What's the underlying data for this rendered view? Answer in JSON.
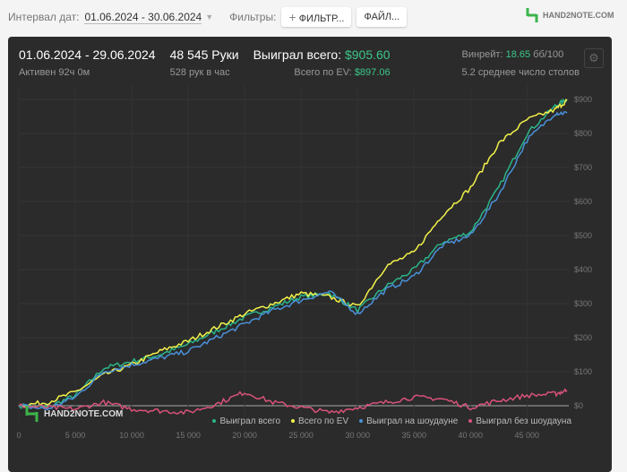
{
  "toolbar": {
    "date_label": "Интервал дат:",
    "date_range": "01.06.2024 - 30.06.2024",
    "filters_label": "Фильтры:",
    "filter_button": "ФИЛЬТР...",
    "file_button": "ФАЙЛ...",
    "logo": "HAND2NOTE.COM"
  },
  "summary": {
    "period": "01.06.2024 - 29.06.2024",
    "active": "Активен 92ч 0м",
    "hands": "48 545 Руки",
    "hands_per_hour": "528 рук в час",
    "won_label": "Выиграл всего:",
    "won_value": "$905.60",
    "ev_label": "Всего по EV:",
    "ev_value": "$897.06",
    "winrate_label": "Винрейт:",
    "winrate_value": "18.65",
    "winrate_unit": "бб/100",
    "tables": "5.2 среднее число столов"
  },
  "watermark": "HAND2NOTE.COM",
  "colors": {
    "green": "#2bb58a",
    "yellow": "#f2f24a",
    "blue": "#4a90d9",
    "pink": "#d9527a",
    "accent": "#3cc68a"
  },
  "chart_data": {
    "type": "line",
    "xlim": [
      0,
      48545
    ],
    "ylim": [
      -50,
      920
    ],
    "x_ticks": [
      0,
      5000,
      10000,
      15000,
      20000,
      25000,
      30000,
      35000,
      40000,
      45000
    ],
    "x_tick_labels": [
      "0",
      "5 000",
      "10 000",
      "15 000",
      "20 000",
      "25 000",
      "30 000",
      "35 000",
      "40 000",
      "45 000"
    ],
    "y_ticks": [
      0,
      100,
      200,
      300,
      400,
      500,
      600,
      700,
      800,
      900
    ],
    "y_tick_labels": [
      "$0",
      "$100",
      "$200",
      "$300",
      "$400",
      "$500",
      "$600",
      "$700",
      "$800",
      "$900"
    ],
    "legend": "bottom-right",
    "x": [
      0,
      2500,
      5000,
      7500,
      10000,
      12500,
      15000,
      17500,
      20000,
      22500,
      25000,
      27500,
      30000,
      32500,
      35000,
      37500,
      40000,
      42500,
      45000,
      47500,
      48545
    ],
    "series": [
      {
        "name": "Выиграл всего",
        "color": "#2bb58a",
        "values": [
          0,
          -5,
          30,
          110,
          130,
          150,
          180,
          220,
          260,
          290,
          320,
          330,
          280,
          350,
          400,
          480,
          510,
          640,
          800,
          880,
          900
        ]
      },
      {
        "name": "Всего по EV",
        "color": "#f2f24a",
        "values": [
          0,
          10,
          40,
          90,
          120,
          160,
          190,
          230,
          270,
          300,
          330,
          320,
          290,
          410,
          450,
          560,
          640,
          770,
          840,
          870,
          897
        ]
      },
      {
        "name": "Выиграл на шоудауне",
        "color": "#4a90d9",
        "values": [
          0,
          -10,
          25,
          100,
          120,
          140,
          160,
          200,
          240,
          280,
          310,
          335,
          270,
          340,
          380,
          470,
          500,
          620,
          780,
          860,
          860
        ]
      },
      {
        "name": "Выиграл без шоудауна",
        "color": "#d9527a",
        "values": [
          0,
          -5,
          -10,
          10,
          -10,
          -15,
          -20,
          5,
          40,
          10,
          -5,
          -20,
          -5,
          10,
          25,
          20,
          -5,
          15,
          30,
          35,
          45
        ]
      }
    ]
  }
}
